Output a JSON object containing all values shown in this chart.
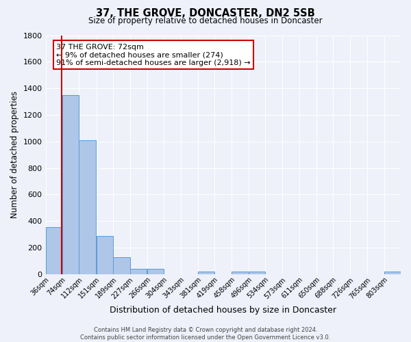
{
  "title": "37, THE GROVE, DONCASTER, DN2 5SB",
  "subtitle": "Size of property relative to detached houses in Doncaster",
  "xlabel": "Distribution of detached houses by size in Doncaster",
  "ylabel": "Number of detached properties",
  "bin_labels": [
    "36sqm",
    "74sqm",
    "112sqm",
    "151sqm",
    "189sqm",
    "227sqm",
    "266sqm",
    "304sqm",
    "343sqm",
    "381sqm",
    "419sqm",
    "458sqm",
    "496sqm",
    "534sqm",
    "573sqm",
    "611sqm",
    "650sqm",
    "688sqm",
    "726sqm",
    "765sqm",
    "803sqm"
  ],
  "bin_edges": [
    36,
    74,
    112,
    151,
    189,
    227,
    266,
    304,
    343,
    381,
    419,
    458,
    496,
    534,
    573,
    611,
    650,
    688,
    726,
    765,
    803
  ],
  "bar_heights": [
    355,
    1350,
    1010,
    290,
    130,
    40,
    40,
    0,
    0,
    20,
    0,
    20,
    20,
    0,
    0,
    0,
    0,
    0,
    0,
    0,
    20
  ],
  "bar_color": "#aec6e8",
  "bar_edge_color": "#5b9bd5",
  "property_size": 72,
  "annotation_line1": "37 THE GROVE: 72sqm",
  "annotation_line2": "← 9% of detached houses are smaller (274)",
  "annotation_line3": "91% of semi-detached houses are larger (2,918) →",
  "vline_color": "#cc0000",
  "annotation_box_edgecolor": "#cc0000",
  "ylim": [
    0,
    1800
  ],
  "yticks": [
    0,
    200,
    400,
    600,
    800,
    1000,
    1200,
    1400,
    1600,
    1800
  ],
  "background_color": "#eef1fa",
  "grid_color": "#ffffff",
  "footer_line1": "Contains HM Land Registry data © Crown copyright and database right 2024.",
  "footer_line2": "Contains public sector information licensed under the Open Government Licence v3.0."
}
